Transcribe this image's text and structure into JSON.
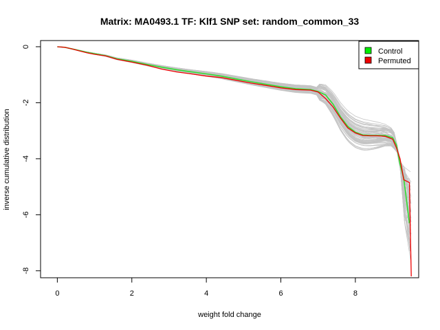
{
  "chart_data": {
    "type": "line",
    "title": "Matrix: MA0493.1 TF: Klf1 SNP set: random_common_33",
    "xlabel": "weight fold change",
    "ylabel": "inverse cumulative distribution",
    "xlim": [
      -0.45,
      9.7
    ],
    "ylim": [
      -8.25,
      0.22
    ],
    "x_ticks": [
      0,
      2,
      4,
      6,
      8
    ],
    "x_tick_labels": [
      "0",
      "2",
      "4",
      "6",
      "8"
    ],
    "y_ticks": [
      0,
      -2,
      -4,
      -6,
      -8
    ],
    "y_tick_labels": [
      "0",
      "-2",
      "-4",
      "-6",
      "-8"
    ],
    "grid": false,
    "legend": {
      "position": "top-right",
      "entries": [
        {
          "label": "Control",
          "color": "#00ee00"
        },
        {
          "label": "Permuted",
          "color": "#ee0000"
        }
      ]
    },
    "series": [
      {
        "name": "Control",
        "color": "#33dd33",
        "x": [
          0,
          0.2,
          0.4,
          0.6,
          0.8,
          1.0,
          1.3,
          1.6,
          2.0,
          2.4,
          2.8,
          3.2,
          3.6,
          4.0,
          4.4,
          4.8,
          5.2,
          5.6,
          6.0,
          6.4,
          6.8,
          7.0,
          7.2,
          7.4,
          7.6,
          7.8,
          8.0,
          8.2,
          8.4,
          8.6,
          8.8,
          9.0,
          9.1,
          9.2,
          9.3,
          9.45
        ],
        "y": [
          0,
          -0.02,
          -0.08,
          -0.14,
          -0.2,
          -0.25,
          -0.32,
          -0.43,
          -0.52,
          -0.63,
          -0.73,
          -0.82,
          -0.9,
          -0.97,
          -1.05,
          -1.15,
          -1.25,
          -1.34,
          -1.43,
          -1.5,
          -1.53,
          -1.6,
          -1.72,
          -2.05,
          -2.5,
          -2.85,
          -3.05,
          -3.15,
          -3.17,
          -3.17,
          -3.17,
          -3.25,
          -3.5,
          -4.2,
          -4.7,
          -6.3
        ]
      },
      {
        "name": "Permuted",
        "color": "#ee0000",
        "x": [
          0,
          0.2,
          0.4,
          0.6,
          0.8,
          1.0,
          1.3,
          1.6,
          2.0,
          2.4,
          2.8,
          3.2,
          3.6,
          4.0,
          4.4,
          4.8,
          5.2,
          5.6,
          6.0,
          6.4,
          6.8,
          7.0,
          7.2,
          7.4,
          7.6,
          7.8,
          8.0,
          8.2,
          8.4,
          8.6,
          8.8,
          9.0,
          9.1,
          9.2,
          9.3,
          9.45,
          9.5
        ],
        "y": [
          0,
          -0.02,
          -0.08,
          -0.15,
          -0.22,
          -0.27,
          -0.33,
          -0.45,
          -0.55,
          -0.66,
          -0.8,
          -0.9,
          -0.97,
          -1.05,
          -1.1,
          -1.2,
          -1.3,
          -1.38,
          -1.47,
          -1.53,
          -1.55,
          -1.62,
          -1.85,
          -2.15,
          -2.55,
          -2.9,
          -3.08,
          -3.17,
          -3.18,
          -3.18,
          -3.2,
          -3.3,
          -3.6,
          -4.0,
          -4.75,
          -4.85,
          -8.2
        ]
      }
    ]
  }
}
